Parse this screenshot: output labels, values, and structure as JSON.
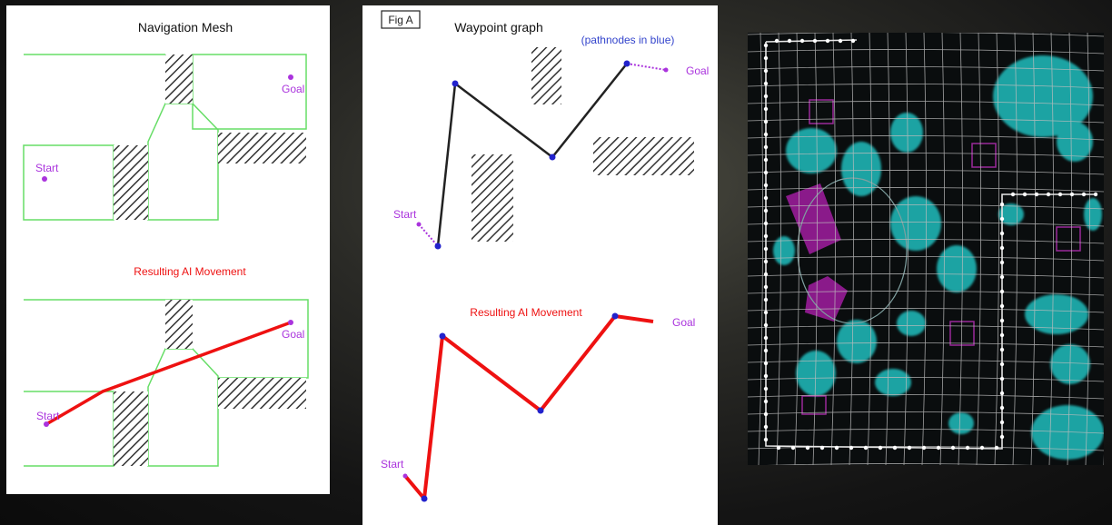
{
  "navmesh_panel": {
    "title": "Navigation Mesh",
    "top_start_label": "Start",
    "top_goal_label": "Goal",
    "result_title": "Resulting AI Movement",
    "bottom_start_label": "Start",
    "bottom_goal_label": "Goal"
  },
  "waypoint_panel": {
    "fig_label": "Fig A",
    "title": "Waypoint graph",
    "note": "(pathnodes in blue)",
    "top_start_label": "Start",
    "top_goal_label": "Goal",
    "result_title": "Resulting AI Movement",
    "bottom_start_label": "Start",
    "bottom_goal_label": "Goal"
  },
  "colors": {
    "mesh_outline": "#66dd66",
    "hatch": "#333333",
    "movement": "#ee1111",
    "node": "#2222cc",
    "label": "#aa33dd",
    "map_foliage": "#1aa3a3",
    "map_building": "#8a1a8a",
    "map_grid": "#bdbdbd"
  }
}
